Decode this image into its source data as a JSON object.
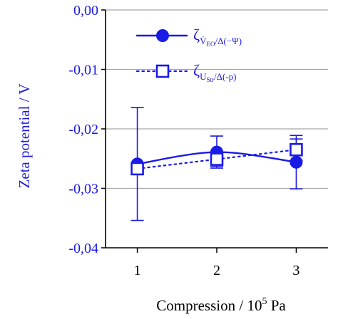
{
  "chart_data": {
    "type": "line",
    "title": "",
    "xlabel": "Compression / 10",
    "xlabel_sup": "5",
    "xlabel_unit": " Pa",
    "ylabel": "Zeta potential / V",
    "x": [
      1,
      2,
      3
    ],
    "x_tick_labels": [
      "1",
      "2",
      "3"
    ],
    "xlim": [
      0.6,
      3.4
    ],
    "ylim": [
      -0.04,
      0.0
    ],
    "y_ticks": [
      0.0,
      -0.01,
      -0.02,
      -0.03,
      -0.04
    ],
    "y_tick_labels": [
      "0,00",
      "-0,01",
      "-0,02",
      "-0,03",
      "-0,04"
    ],
    "grid": "horizontal",
    "legend_position": "top-center",
    "series": [
      {
        "name": "ζ_{V̇_EO/Δ(−Ψ)}",
        "legend_main": "ζ",
        "legend_sub": "V̇",
        "legend_subsub": "EO",
        "legend_tail": "/Δ(−Ψ)",
        "marker": "filled-circle",
        "line_style": "solid",
        "color": "#1a1ae6",
        "values": [
          -0.0259,
          -0.0239,
          -0.0256
        ],
        "error": [
          0.0095,
          0.0027,
          0.0045
        ]
      },
      {
        "name": "ζ_{U_Str/Δ(-p)}",
        "legend_main": "ζ",
        "legend_sub": "U",
        "legend_subsub": "Str",
        "legend_tail": "/Δ(-p)",
        "marker": "open-square",
        "line_style": "dotted",
        "color": "#1a1ae6",
        "values": [
          -0.0267,
          -0.0251,
          -0.0235
        ],
        "error": [
          0.0008,
          0.0012,
          0.0018
        ]
      }
    ]
  }
}
